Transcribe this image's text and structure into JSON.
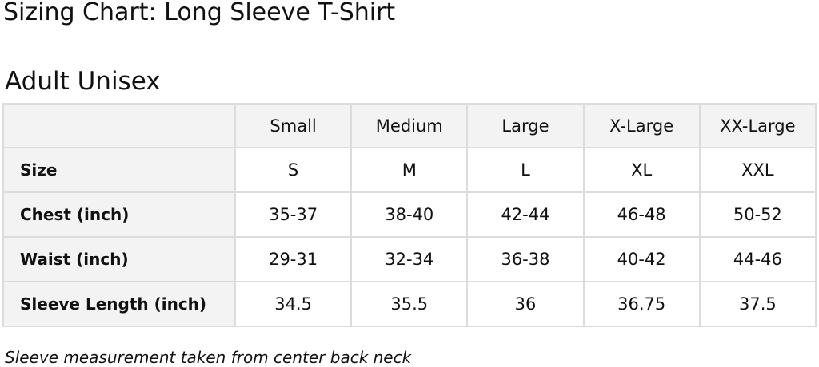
{
  "title": "Sizing Chart: Long Sleeve T-Shirt",
  "subtitle": "Adult Unisex",
  "table": {
    "columns": [
      "",
      "Small",
      "Medium",
      "Large",
      "X-Large",
      "XX-Large"
    ],
    "rows": [
      {
        "label": "Size",
        "values": [
          "S",
          "M",
          "L",
          "XL",
          "XXL"
        ]
      },
      {
        "label": "Chest (inch)",
        "values": [
          "35-37",
          "38-40",
          "42-44",
          "46-48",
          "50-52"
        ]
      },
      {
        "label": "Waist (inch)",
        "values": [
          "29-31",
          "32-34",
          "36-38",
          "40-42",
          "44-46"
        ]
      },
      {
        "label": "Sleeve Length (inch)",
        "values": [
          "34.5",
          "35.5",
          "36",
          "36.75",
          "37.5"
        ]
      }
    ]
  },
  "note": "Sleeve measurement taken from center back neck",
  "colors": {
    "header_bg": "#f3f3f3",
    "border": "#dcdcdc",
    "text": "#111111"
  }
}
